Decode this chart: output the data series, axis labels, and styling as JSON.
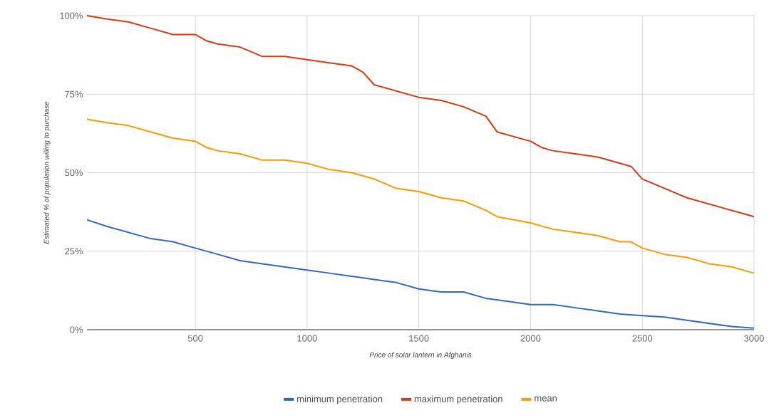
{
  "chart_data": {
    "type": "line",
    "xlabel": "Price of solar lantern in Afghanis",
    "ylabel": "Estimated % of population willing to purchase",
    "xlim": [
      15,
      3000
    ],
    "xticks": [
      500,
      1000,
      1500,
      2000,
      2500,
      3000
    ],
    "ylim": [
      0,
      100
    ],
    "yticks": [
      {
        "value": 0,
        "label": "0%"
      },
      {
        "value": 25,
        "label": "25%"
      },
      {
        "value": 50,
        "label": "50%"
      },
      {
        "value": 75,
        "label": "75%"
      },
      {
        "value": 100,
        "label": "100%"
      }
    ],
    "grid": true,
    "legend": "bottom",
    "marker": "none",
    "line_style": "solid",
    "series": [
      {
        "name": "minimum penetration",
        "color": "#3366cc",
        "x": [
          15,
          100,
          200,
          300,
          400,
          500,
          550,
          600,
          700,
          800,
          900,
          1000,
          1100,
          1200,
          1300,
          1400,
          1500,
          1600,
          1700,
          1800,
          1900,
          2000,
          2100,
          2200,
          2300,
          2400,
          2500,
          2600,
          2700,
          2800,
          2900,
          3000
        ],
        "values": [
          35,
          33,
          31,
          29,
          28,
          26,
          25,
          24,
          22,
          21,
          20,
          19,
          18,
          17,
          16,
          15,
          13,
          12,
          12,
          10,
          9,
          8,
          8,
          7,
          6,
          5,
          4.5,
          4,
          3,
          2,
          1,
          0.5
        ]
      },
      {
        "name": "maximum penetration",
        "color": "#dc3912",
        "x": [
          15,
          100,
          200,
          300,
          400,
          500,
          550,
          600,
          700,
          800,
          900,
          1000,
          1100,
          1200,
          1250,
          1300,
          1400,
          1500,
          1600,
          1700,
          1800,
          1850,
          1900,
          2000,
          2050,
          2100,
          2200,
          2300,
          2400,
          2450,
          2500,
          2600,
          2700,
          2800,
          2900,
          3000
        ],
        "values": [
          100,
          99,
          98,
          96,
          94,
          94,
          92,
          91,
          90,
          87,
          87,
          86,
          85,
          84,
          82,
          78,
          76,
          74,
          73,
          71,
          68,
          63,
          62,
          60,
          58,
          57,
          56,
          55,
          53,
          52,
          48,
          45,
          42,
          40,
          38,
          36
        ]
      },
      {
        "name": "mean",
        "color": "#ff9900",
        "x": [
          15,
          100,
          200,
          300,
          400,
          500,
          550,
          600,
          700,
          800,
          900,
          1000,
          1100,
          1200,
          1300,
          1400,
          1500,
          1600,
          1700,
          1800,
          1850,
          2000,
          2100,
          2200,
          2300,
          2400,
          2450,
          2500,
          2600,
          2700,
          2800,
          2900,
          3000
        ],
        "values": [
          67,
          66,
          65,
          63,
          61,
          60,
          58,
          57,
          56,
          54,
          54,
          53,
          51,
          50,
          48,
          45,
          44,
          42,
          41,
          38,
          36,
          34,
          32,
          31,
          30,
          28,
          28,
          26,
          24,
          23,
          21,
          20,
          18
        ]
      }
    ]
  }
}
